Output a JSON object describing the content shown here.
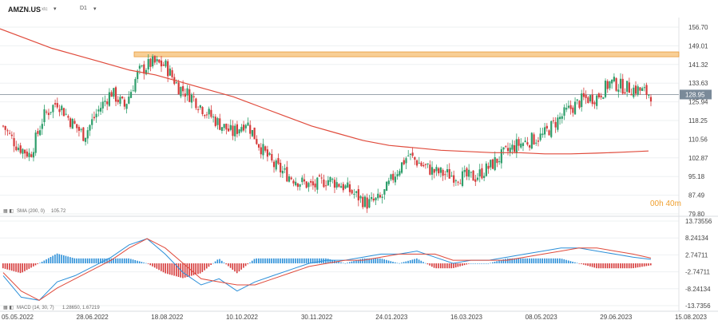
{
  "header": {
    "symbol": "AMZN.US",
    "symbol_sub": "xtc",
    "dropdown_icon": "caret-down-icon",
    "timeframe": "D1"
  },
  "price_axis": {
    "ticks": [
      "156.70",
      "149.01",
      "141.32",
      "133.63",
      "125.94",
      "118.25",
      "110.56",
      "102.87",
      "95.18",
      "87.49",
      "79.80"
    ],
    "current_price": "128.95",
    "current_price_color": "#7a8a99"
  },
  "macd_axis": {
    "ticks": [
      "13.73556",
      "8.24134",
      "2.74711",
      "-2.74711",
      "-8.24134",
      "-13.7356"
    ]
  },
  "x_axis": {
    "ticks": [
      "05.05.2022",
      "28.06.2022",
      "18.08.2022",
      "10.10.2022",
      "30.11.2022",
      "24.01.2023",
      "16.03.2023",
      "08.05.2023",
      "29.06.2023",
      "15.08.2023"
    ]
  },
  "indicators": {
    "sma_label": "SMA (200, 0)",
    "sma_value": "105.72",
    "macd_label": "MACD (14, 30, 7)",
    "macd_values": "1.28650, 1.67219"
  },
  "timer": "00h 40m",
  "colors": {
    "up": "#2e9e6b",
    "down": "#d63b3b",
    "sma": "#e04b3c",
    "zone": "#f5b65e",
    "macd_line": "#2b8fd8",
    "signal_line": "#e04b3c",
    "hist_pos": "#2b8fd8",
    "hist_neg": "#d63b3b"
  },
  "chart_data": [
    {
      "type": "candlestick",
      "title": "AMZN.US D1",
      "x": [
        "05.05.2022",
        "28.06.2022",
        "18.08.2022",
        "10.10.2022",
        "30.11.2022",
        "24.01.2023",
        "16.03.2023",
        "08.05.2023",
        "29.06.2023"
      ],
      "close_path": [
        116,
        108,
        104,
        120,
        126,
        118,
        112,
        122,
        130,
        124,
        138,
        142,
        141,
        132,
        128,
        122,
        117,
        113,
        118,
        108,
        100,
        96,
        93,
        91,
        94,
        92,
        88,
        84,
        86,
        96,
        104,
        100,
        97,
        96,
        95,
        95,
        99,
        104,
        108,
        110,
        112,
        118,
        123,
        127,
        128,
        134,
        132,
        131,
        129
      ],
      "ylim": [
        79.8,
        156.7
      ],
      "resistance_zone": [
        144.5,
        146.5
      ],
      "current_price": 128.95
    },
    {
      "type": "line",
      "name": "SMA (200, 0)",
      "last_value": 105.72,
      "values": [
        156,
        152,
        148,
        145,
        142,
        139,
        137,
        134,
        131,
        128,
        124,
        120,
        116,
        113,
        110,
        108,
        107,
        106,
        105.5,
        105,
        105,
        104.5,
        104.5,
        104.8,
        105.2,
        105.7
      ]
    },
    {
      "type": "line",
      "name": "MACD (14, 30, 7)",
      "macd": [
        -4,
        -11,
        -12,
        -6,
        -4,
        -1,
        2,
        6,
        8,
        3,
        -3,
        -7,
        -5,
        -9,
        -6,
        -4,
        -2,
        0,
        1,
        1,
        2,
        3,
        3,
        4,
        2,
        0,
        1,
        1,
        2,
        3,
        4,
        5,
        5,
        4,
        3,
        2,
        1.3
      ],
      "signal": [
        -3,
        -9,
        -12,
        -8,
        -5,
        -2,
        1,
        5,
        8,
        5,
        0,
        -5,
        -6,
        -7,
        -7,
        -5,
        -3,
        -1,
        0,
        1,
        1,
        2,
        3,
        3,
        3,
        1,
        1,
        1,
        1,
        2,
        3,
        4,
        5,
        5,
        4,
        3,
        1.7
      ],
      "ylim": [
        -13.7356,
        13.73556
      ]
    }
  ]
}
